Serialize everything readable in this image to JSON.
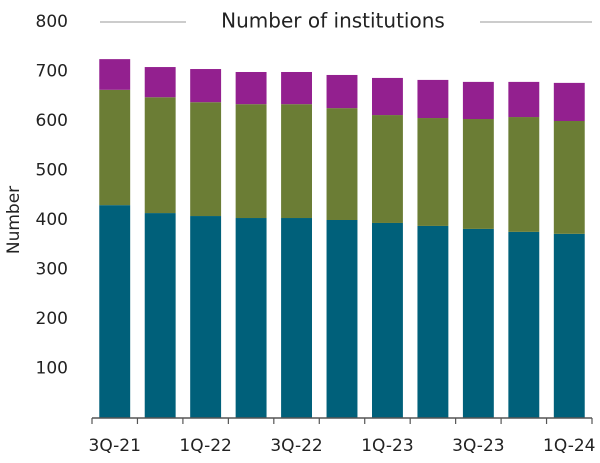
{
  "chart_data": {
    "type": "stacked_bar",
    "title": "Number of institutions",
    "y_label": "Number",
    "categories": [
      "3Q-21",
      null,
      "1Q-22",
      null,
      "3Q-22",
      null,
      "1Q-23",
      null,
      "3Q-23",
      null,
      "1Q-24"
    ],
    "series": [
      {
        "color": "#00607a",
        "values": [
          430,
          414,
          408,
          404,
          404,
          400,
          394,
          388,
          382,
          376,
          372
        ]
      },
      {
        "color": "#6b7d35",
        "values": [
          233,
          234,
          230,
          230,
          230,
          226,
          218,
          218,
          222,
          232,
          228
        ]
      },
      {
        "color": "#93208f",
        "values": [
          62,
          61,
          67,
          65,
          65,
          67,
          75,
          77,
          75,
          71,
          77
        ]
      }
    ],
    "ylim": [
      0,
      800
    ],
    "yticks": [
      100,
      200,
      300,
      400,
      500,
      600,
      700,
      800
    ],
    "grid": false
  }
}
